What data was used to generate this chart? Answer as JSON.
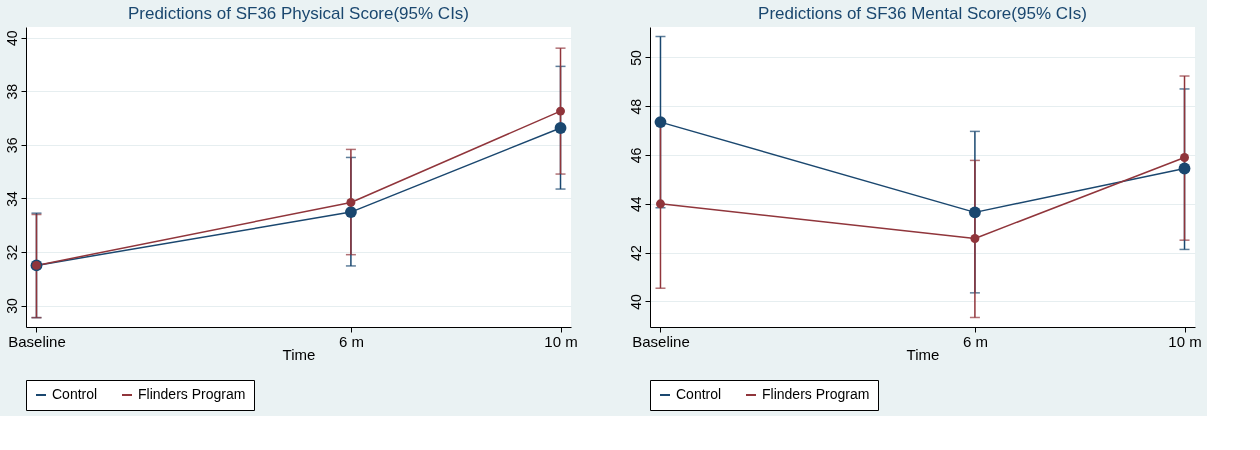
{
  "chart_data": [
    {
      "type": "line",
      "title": "Predictions of SF36 Physical Score(95% CIs)",
      "xlabel": "Time",
      "x": [
        0,
        6,
        10
      ],
      "xlim": [
        -0.2,
        10.2
      ],
      "xticks": [
        {
          "value": 0,
          "label": "Baseline"
        },
        {
          "value": 6,
          "label": "6 m"
        },
        {
          "value": 10,
          "label": "10 m"
        }
      ],
      "ylim": [
        29.2,
        40.4
      ],
      "yticks": [
        30,
        32,
        34,
        36,
        38,
        40
      ],
      "grid": "y",
      "legend": "bottom",
      "marker": "circle",
      "line_style": "solid",
      "series": [
        {
          "name": "Control",
          "color": "#1a476f",
          "values": [
            31.5,
            33.49,
            36.63
          ],
          "errors": [
            [
              29.55,
              33.45
            ],
            [
              31.48,
              35.53
            ],
            [
              34.35,
              38.93
            ]
          ]
        },
        {
          "name": "Flinders Program",
          "color": "#90353b",
          "values": [
            31.5,
            33.85,
            37.26
          ],
          "errors": [
            [
              29.55,
              33.4
            ],
            [
              31.9,
              35.83
            ],
            [
              34.91,
              39.61
            ]
          ]
        }
      ]
    },
    {
      "type": "line",
      "title": "Predictions of SF36 Mental Score(95% CIs)",
      "xlabel": "Time",
      "x": [
        0,
        6,
        10
      ],
      "xlim": [
        -0.2,
        10.2
      ],
      "xticks": [
        {
          "value": 0,
          "label": "Baseline"
        },
        {
          "value": 6,
          "label": "6 m"
        },
        {
          "value": 10,
          "label": "10 m"
        }
      ],
      "ylim": [
        38.95,
        51.25
      ],
      "yticks": [
        40,
        42,
        44,
        46,
        48,
        50
      ],
      "grid": "y",
      "legend": "bottom",
      "marker": "circle",
      "line_style": "solid",
      "series": [
        {
          "name": "Control",
          "color": "#1a476f",
          "values": [
            47.35,
            43.65,
            45.45
          ],
          "errors": [
            [
              43.84,
              50.86
            ],
            [
              40.35,
              46.97
            ],
            [
              42.13,
              48.71
            ]
          ]
        },
        {
          "name": "Flinders Program",
          "color": "#90353b",
          "values": [
            44.0,
            42.58,
            45.9
          ],
          "errors": [
            [
              40.54,
              47.4
            ],
            [
              39.34,
              45.78
            ],
            [
              42.51,
              49.24
            ]
          ]
        }
      ]
    }
  ]
}
